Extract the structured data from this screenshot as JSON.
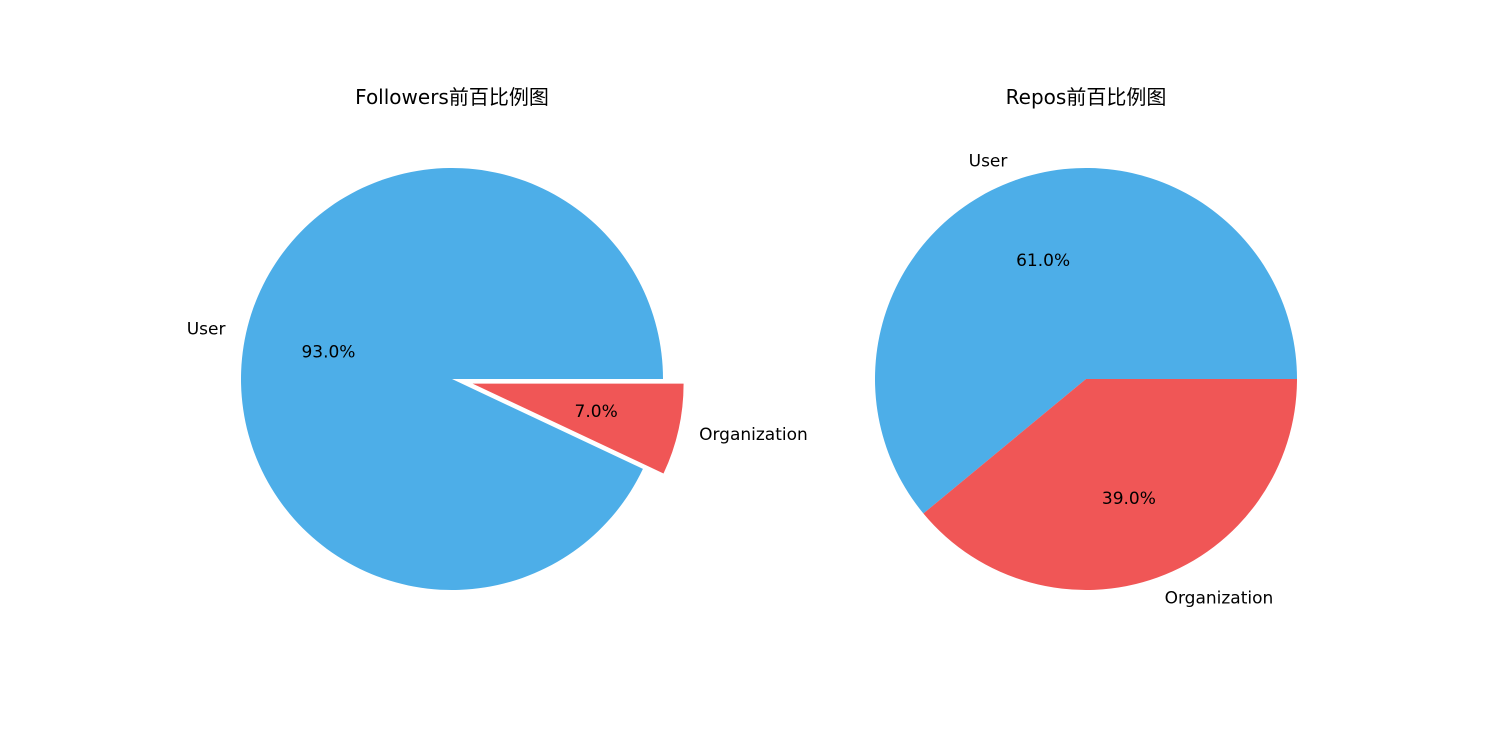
{
  "chart_data": [
    {
      "type": "pie",
      "title": "Followers前百比例图",
      "categories": [
        "User",
        "Organization"
      ],
      "values": [
        93.0,
        7.0
      ],
      "percent_labels": [
        "93.0%",
        "7.0%"
      ],
      "colors": [
        "#4daee8",
        "#f05656"
      ],
      "explode": [
        0,
        0.1
      ],
      "start_angle_deg": 0,
      "direction": "counterclockwise"
    },
    {
      "type": "pie",
      "title": "Repos前百比例图",
      "categories": [
        "User",
        "Organization"
      ],
      "values": [
        61.0,
        39.0
      ],
      "percent_labels": [
        "61.0%",
        "39.0%"
      ],
      "colors": [
        "#4daee8",
        "#f05656"
      ],
      "explode": [
        0,
        0
      ],
      "start_angle_deg": 0,
      "direction": "counterclockwise"
    }
  ]
}
